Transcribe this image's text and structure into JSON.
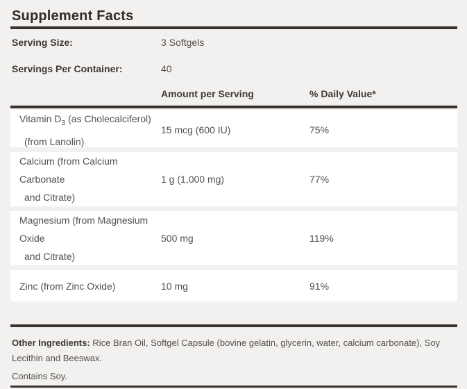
{
  "title": "Supplement Facts",
  "serving_info": {
    "size_label": "Serving Size:",
    "size_value": "3 Softgels",
    "container_label": "Servings Per Container:",
    "container_value": "40"
  },
  "columns": {
    "amount": "Amount per Serving",
    "daily_value": "% Daily Value*"
  },
  "nutrients": [
    {
      "name_line1_prefix": "Vitamin D",
      "name_line1_sub": "3",
      "name_line1_suffix": "(as Cholecalciferol)",
      "name_line2": "(from Lanolin)",
      "amount": "15 mcg (600 IU)",
      "daily_value": "75%"
    },
    {
      "name_line1": "Calcium (from Calcium",
      "name_line2": "Carbonate",
      "name_line3": "and Citrate)",
      "amount": "1 g (1,000 mg)",
      "daily_value": "77%"
    },
    {
      "name_line1": "Magnesium (from Magnesium",
      "name_line2": "Oxide",
      "name_line3": "and Citrate)",
      "amount": "500 mg",
      "daily_value": "119%"
    },
    {
      "name_line1": "Zinc (from Zinc Oxide)",
      "amount": "10 mg",
      "daily_value": "91%"
    }
  ],
  "footer": {
    "other_ingredients_label": "Other Ingredients:",
    "other_ingredients_text": "Rice Bran Oil, Softgel Capsule (bovine gelatin, glycerin, water, calcium carbonate), Soy Lecithin and Beeswax.",
    "contains": "Contains Soy."
  },
  "colors": {
    "page_background": "#f2f1ef",
    "row_background": "#ffffff",
    "rule": "#393231",
    "heading_text": "#322c29",
    "body_text": "#544f4c"
  }
}
